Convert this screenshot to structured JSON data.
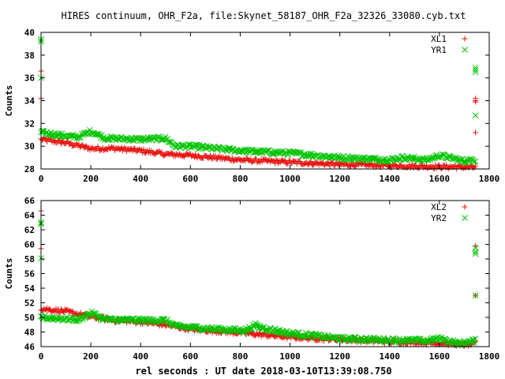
{
  "figure": {
    "title": "HIRES continuum, OHR_F2a, file:Skynet_58187_OHR_F2a_32326_33080.cyb.txt",
    "xlabel": "rel seconds : UT date 2018-03-10T13:39:08.750"
  },
  "colors": {
    "red": "#e8130e",
    "green": "#00c400",
    "axis": "#000000",
    "text": "#000000"
  },
  "chart_data": [
    {
      "type": "scatter",
      "ylabel": "Counts",
      "xlim": [
        0,
        1800
      ],
      "ylim": [
        28,
        40
      ],
      "xticks": [
        "0",
        "200",
        "400",
        "600",
        "800",
        "1000",
        "1200",
        "1400",
        "1600",
        "1800"
      ],
      "yticks": [
        "28",
        "30",
        "32",
        "34",
        "36",
        "38",
        "40"
      ],
      "legend_position": "top-right",
      "series": [
        {
          "name": "XL1",
          "marker": "plus",
          "color": "#e8130e",
          "trend": [
            [
              0,
              30.6
            ],
            [
              100,
              30.3
            ],
            [
              200,
              29.8
            ],
            [
              300,
              29.8
            ],
            [
              400,
              29.6
            ],
            [
              500,
              29.3
            ],
            [
              600,
              29.2
            ],
            [
              800,
              28.8
            ],
            [
              1000,
              28.6
            ],
            [
              1200,
              28.4
            ],
            [
              1400,
              28.3
            ],
            [
              1600,
              28.2
            ],
            [
              1745,
              28.15
            ]
          ],
          "outliers": [
            [
              0,
              36.6
            ],
            [
              0,
              34.2
            ],
            [
              1745,
              34.2
            ],
            [
              1745,
              34.0
            ],
            [
              1745,
              33.9
            ],
            [
              1745,
              31.2
            ]
          ]
        },
        {
          "name": "YR1",
          "marker": "cross",
          "color": "#00c400",
          "trend": [
            [
              0,
              31.2
            ],
            [
              100,
              30.9
            ],
            [
              150,
              30.8
            ],
            [
              200,
              31.3
            ],
            [
              260,
              30.7
            ],
            [
              400,
              30.6
            ],
            [
              500,
              30.7
            ],
            [
              540,
              30.0
            ],
            [
              600,
              30.0
            ],
            [
              700,
              29.8
            ],
            [
              800,
              29.6
            ],
            [
              1000,
              29.4
            ],
            [
              1200,
              29.0
            ],
            [
              1400,
              28.8
            ],
            [
              1450,
              29.0
            ],
            [
              1550,
              28.8
            ],
            [
              1600,
              29.2
            ],
            [
              1700,
              28.7
            ],
            [
              1745,
              28.8
            ]
          ],
          "outliers": [
            [
              0,
              39.4
            ],
            [
              0,
              39.2
            ],
            [
              0,
              36.0
            ],
            [
              1745,
              36.9
            ],
            [
              1745,
              36.7
            ],
            [
              1745,
              36.5
            ],
            [
              1745,
              32.7
            ]
          ]
        }
      ]
    },
    {
      "type": "scatter",
      "ylabel": "Counts",
      "xlim": [
        0,
        1800
      ],
      "ylim": [
        46,
        66
      ],
      "xticks": [
        "0",
        "200",
        "400",
        "600",
        "800",
        "1000",
        "1200",
        "1400",
        "1600",
        "1800"
      ],
      "yticks": [
        "46",
        "48",
        "50",
        "52",
        "54",
        "56",
        "58",
        "60",
        "62",
        "64",
        "66"
      ],
      "legend_position": "top-right",
      "series": [
        {
          "name": "XL2",
          "marker": "plus",
          "color": "#e8130e",
          "trend": [
            [
              0,
              51.2
            ],
            [
              100,
              50.8
            ],
            [
              200,
              50.1
            ],
            [
              300,
              49.6
            ],
            [
              400,
              49.4
            ],
            [
              500,
              49.0
            ],
            [
              600,
              48.4
            ],
            [
              800,
              47.9
            ],
            [
              1000,
              47.3
            ],
            [
              1200,
              47.0
            ],
            [
              1400,
              46.7
            ],
            [
              1600,
              46.5
            ],
            [
              1700,
              46.3
            ],
            [
              1745,
              46.4
            ]
          ],
          "outliers": [
            [
              0,
              64.6
            ],
            [
              0,
              59.4
            ],
            [
              1745,
              59.8
            ],
            [
              1745,
              53.0
            ]
          ]
        },
        {
          "name": "YR2",
          "marker": "cross",
          "color": "#00c400",
          "trend": [
            [
              0,
              50.0
            ],
            [
              100,
              49.8
            ],
            [
              150,
              49.7
            ],
            [
              200,
              50.6
            ],
            [
              260,
              49.7
            ],
            [
              400,
              49.6
            ],
            [
              500,
              49.6
            ],
            [
              540,
              48.8
            ],
            [
              700,
              48.4
            ],
            [
              820,
              48.2
            ],
            [
              860,
              48.9
            ],
            [
              900,
              48.5
            ],
            [
              1000,
              47.8
            ],
            [
              1100,
              47.5
            ],
            [
              1200,
              47.1
            ],
            [
              1400,
              46.9
            ],
            [
              1550,
              46.8
            ],
            [
              1600,
              47.1
            ],
            [
              1680,
              46.4
            ],
            [
              1745,
              46.8
            ]
          ],
          "outliers": [
            [
              0,
              63.0
            ],
            [
              0,
              62.8
            ],
            [
              0,
              58.1
            ],
            [
              1745,
              59.5
            ],
            [
              1745,
              59.0
            ],
            [
              1745,
              58.7
            ],
            [
              1745,
              53.0
            ]
          ]
        }
      ]
    }
  ]
}
